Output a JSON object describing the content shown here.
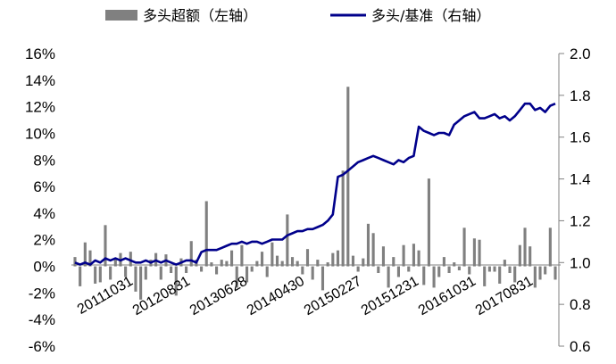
{
  "chart_data": {
    "type": "bar+line",
    "legend": [
      {
        "name": "多头超额（左轴）",
        "kind": "bar",
        "color": "#808080"
      },
      {
        "name": "多头/基准（右轴）",
        "kind": "line",
        "color": "#00008B"
      }
    ],
    "legend_position": "top",
    "grid": false,
    "y_left": {
      "ticks": [
        "16%",
        "14%",
        "12%",
        "10%",
        "8%",
        "6%",
        "4%",
        "2%",
        "0%",
        "-2%",
        "-4%",
        "-6%"
      ],
      "range": [
        -6,
        16
      ]
    },
    "y_right": {
      "ticks": [
        "2.0",
        "1.8",
        "1.6",
        "1.4",
        "1.2",
        "1.0",
        "0.8",
        "0.6"
      ],
      "range": [
        0.6,
        2.0
      ]
    },
    "x_ticks": [
      "20111031",
      "20120831",
      "20130628",
      "20140430",
      "20150227",
      "20151231",
      "20161031",
      "20170831"
    ],
    "bars": [
      0.7,
      -1.5,
      1.8,
      1.2,
      -1.3,
      -1.2,
      3.1,
      -1.0,
      0.6,
      1.0,
      -0.8,
      1.1,
      -1.9,
      -2.5,
      -1.0,
      0.5,
      1.0,
      -1.0,
      0.9,
      -0.5,
      -2.2,
      0.6,
      -0.5,
      1.9,
      0.5,
      -0.4,
      4.9,
      0.3,
      -0.6,
      0.5,
      0.4,
      1.2,
      -1.6,
      1.6,
      -1.2,
      -0.4,
      0.4,
      1.1,
      -0.8,
      1.8,
      0.8,
      0.4,
      3.9,
      0.7,
      0.4,
      -0.6,
      1.3,
      -1.0,
      0.5,
      -1.8,
      0.3,
      1.0,
      1.2,
      7.2,
      13.5,
      0.8,
      -0.4,
      0.6,
      3.2,
      2.5,
      -0.5,
      1.5,
      -1.6,
      0.7,
      -0.8,
      1.6,
      -0.4,
      1.7,
      1.2,
      -1.4,
      6.6,
      -1.6,
      -0.8,
      0.7,
      -0.5,
      0.3,
      -0.3,
      2.9,
      -0.6,
      2.1,
      2.0,
      -1.5,
      -0.4,
      -0.4,
      -1.3,
      0.5,
      -0.5,
      -1.2,
      1.6,
      2.9,
      1.5,
      -1.6,
      -1.0,
      -0.6,
      2.9,
      -1.0
    ],
    "line": [
      1.0,
      0.99,
      1.0,
      0.99,
      1.01,
      1.0,
      1.02,
      1.01,
      1.02,
      1.01,
      1.02,
      1.01,
      1.0,
      1.0,
      1.01,
      1.0,
      1.01,
      1.0,
      1.01,
      1.0,
      0.99,
      1.0,
      1.01,
      1.01,
      1.0,
      1.05,
      1.06,
      1.06,
      1.06,
      1.07,
      1.08,
      1.09,
      1.09,
      1.1,
      1.09,
      1.1,
      1.1,
      1.09,
      1.1,
      1.11,
      1.11,
      1.11,
      1.13,
      1.14,
      1.15,
      1.15,
      1.16,
      1.16,
      1.17,
      1.18,
      1.2,
      1.23,
      1.41,
      1.42,
      1.44,
      1.46,
      1.48,
      1.49,
      1.5,
      1.51,
      1.5,
      1.49,
      1.48,
      1.47,
      1.49,
      1.48,
      1.5,
      1.51,
      1.65,
      1.63,
      1.62,
      1.61,
      1.62,
      1.62,
      1.61,
      1.66,
      1.68,
      1.7,
      1.71,
      1.72,
      1.69,
      1.69,
      1.7,
      1.71,
      1.69,
      1.7,
      1.68,
      1.7,
      1.73,
      1.76,
      1.76,
      1.73,
      1.74,
      1.72,
      1.75,
      1.76
    ]
  }
}
